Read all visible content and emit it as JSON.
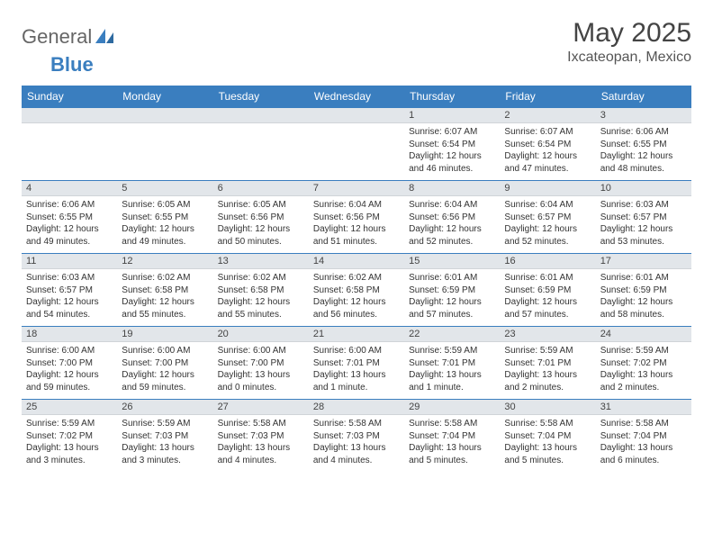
{
  "brand": {
    "part1": "General",
    "part2": "Blue"
  },
  "title": "May 2025",
  "location": "Ixcateopan, Mexico",
  "colors": {
    "header_bg": "#3a7ebf",
    "header_text": "#ffffff",
    "daynum_bg": "#e2e6ea",
    "border": "#3a7ebf",
    "text": "#333333",
    "brand_gray": "#666666",
    "brand_blue": "#3a7ebf"
  },
  "weekdays": [
    "Sunday",
    "Monday",
    "Tuesday",
    "Wednesday",
    "Thursday",
    "Friday",
    "Saturday"
  ],
  "weeks": [
    [
      {
        "day": "",
        "sunrise": "",
        "sunset": "",
        "daylight": ""
      },
      {
        "day": "",
        "sunrise": "",
        "sunset": "",
        "daylight": ""
      },
      {
        "day": "",
        "sunrise": "",
        "sunset": "",
        "daylight": ""
      },
      {
        "day": "",
        "sunrise": "",
        "sunset": "",
        "daylight": ""
      },
      {
        "day": "1",
        "sunrise": "Sunrise: 6:07 AM",
        "sunset": "Sunset: 6:54 PM",
        "daylight": "Daylight: 12 hours and 46 minutes."
      },
      {
        "day": "2",
        "sunrise": "Sunrise: 6:07 AM",
        "sunset": "Sunset: 6:54 PM",
        "daylight": "Daylight: 12 hours and 47 minutes."
      },
      {
        "day": "3",
        "sunrise": "Sunrise: 6:06 AM",
        "sunset": "Sunset: 6:55 PM",
        "daylight": "Daylight: 12 hours and 48 minutes."
      }
    ],
    [
      {
        "day": "4",
        "sunrise": "Sunrise: 6:06 AM",
        "sunset": "Sunset: 6:55 PM",
        "daylight": "Daylight: 12 hours and 49 minutes."
      },
      {
        "day": "5",
        "sunrise": "Sunrise: 6:05 AM",
        "sunset": "Sunset: 6:55 PM",
        "daylight": "Daylight: 12 hours and 49 minutes."
      },
      {
        "day": "6",
        "sunrise": "Sunrise: 6:05 AM",
        "sunset": "Sunset: 6:56 PM",
        "daylight": "Daylight: 12 hours and 50 minutes."
      },
      {
        "day": "7",
        "sunrise": "Sunrise: 6:04 AM",
        "sunset": "Sunset: 6:56 PM",
        "daylight": "Daylight: 12 hours and 51 minutes."
      },
      {
        "day": "8",
        "sunrise": "Sunrise: 6:04 AM",
        "sunset": "Sunset: 6:56 PM",
        "daylight": "Daylight: 12 hours and 52 minutes."
      },
      {
        "day": "9",
        "sunrise": "Sunrise: 6:04 AM",
        "sunset": "Sunset: 6:57 PM",
        "daylight": "Daylight: 12 hours and 52 minutes."
      },
      {
        "day": "10",
        "sunrise": "Sunrise: 6:03 AM",
        "sunset": "Sunset: 6:57 PM",
        "daylight": "Daylight: 12 hours and 53 minutes."
      }
    ],
    [
      {
        "day": "11",
        "sunrise": "Sunrise: 6:03 AM",
        "sunset": "Sunset: 6:57 PM",
        "daylight": "Daylight: 12 hours and 54 minutes."
      },
      {
        "day": "12",
        "sunrise": "Sunrise: 6:02 AM",
        "sunset": "Sunset: 6:58 PM",
        "daylight": "Daylight: 12 hours and 55 minutes."
      },
      {
        "day": "13",
        "sunrise": "Sunrise: 6:02 AM",
        "sunset": "Sunset: 6:58 PM",
        "daylight": "Daylight: 12 hours and 55 minutes."
      },
      {
        "day": "14",
        "sunrise": "Sunrise: 6:02 AM",
        "sunset": "Sunset: 6:58 PM",
        "daylight": "Daylight: 12 hours and 56 minutes."
      },
      {
        "day": "15",
        "sunrise": "Sunrise: 6:01 AM",
        "sunset": "Sunset: 6:59 PM",
        "daylight": "Daylight: 12 hours and 57 minutes."
      },
      {
        "day": "16",
        "sunrise": "Sunrise: 6:01 AM",
        "sunset": "Sunset: 6:59 PM",
        "daylight": "Daylight: 12 hours and 57 minutes."
      },
      {
        "day": "17",
        "sunrise": "Sunrise: 6:01 AM",
        "sunset": "Sunset: 6:59 PM",
        "daylight": "Daylight: 12 hours and 58 minutes."
      }
    ],
    [
      {
        "day": "18",
        "sunrise": "Sunrise: 6:00 AM",
        "sunset": "Sunset: 7:00 PM",
        "daylight": "Daylight: 12 hours and 59 minutes."
      },
      {
        "day": "19",
        "sunrise": "Sunrise: 6:00 AM",
        "sunset": "Sunset: 7:00 PM",
        "daylight": "Daylight: 12 hours and 59 minutes."
      },
      {
        "day": "20",
        "sunrise": "Sunrise: 6:00 AM",
        "sunset": "Sunset: 7:00 PM",
        "daylight": "Daylight: 13 hours and 0 minutes."
      },
      {
        "day": "21",
        "sunrise": "Sunrise: 6:00 AM",
        "sunset": "Sunset: 7:01 PM",
        "daylight": "Daylight: 13 hours and 1 minute."
      },
      {
        "day": "22",
        "sunrise": "Sunrise: 5:59 AM",
        "sunset": "Sunset: 7:01 PM",
        "daylight": "Daylight: 13 hours and 1 minute."
      },
      {
        "day": "23",
        "sunrise": "Sunrise: 5:59 AM",
        "sunset": "Sunset: 7:01 PM",
        "daylight": "Daylight: 13 hours and 2 minutes."
      },
      {
        "day": "24",
        "sunrise": "Sunrise: 5:59 AM",
        "sunset": "Sunset: 7:02 PM",
        "daylight": "Daylight: 13 hours and 2 minutes."
      }
    ],
    [
      {
        "day": "25",
        "sunrise": "Sunrise: 5:59 AM",
        "sunset": "Sunset: 7:02 PM",
        "daylight": "Daylight: 13 hours and 3 minutes."
      },
      {
        "day": "26",
        "sunrise": "Sunrise: 5:59 AM",
        "sunset": "Sunset: 7:03 PM",
        "daylight": "Daylight: 13 hours and 3 minutes."
      },
      {
        "day": "27",
        "sunrise": "Sunrise: 5:58 AM",
        "sunset": "Sunset: 7:03 PM",
        "daylight": "Daylight: 13 hours and 4 minutes."
      },
      {
        "day": "28",
        "sunrise": "Sunrise: 5:58 AM",
        "sunset": "Sunset: 7:03 PM",
        "daylight": "Daylight: 13 hours and 4 minutes."
      },
      {
        "day": "29",
        "sunrise": "Sunrise: 5:58 AM",
        "sunset": "Sunset: 7:04 PM",
        "daylight": "Daylight: 13 hours and 5 minutes."
      },
      {
        "day": "30",
        "sunrise": "Sunrise: 5:58 AM",
        "sunset": "Sunset: 7:04 PM",
        "daylight": "Daylight: 13 hours and 5 minutes."
      },
      {
        "day": "31",
        "sunrise": "Sunrise: 5:58 AM",
        "sunset": "Sunset: 7:04 PM",
        "daylight": "Daylight: 13 hours and 6 minutes."
      }
    ]
  ]
}
